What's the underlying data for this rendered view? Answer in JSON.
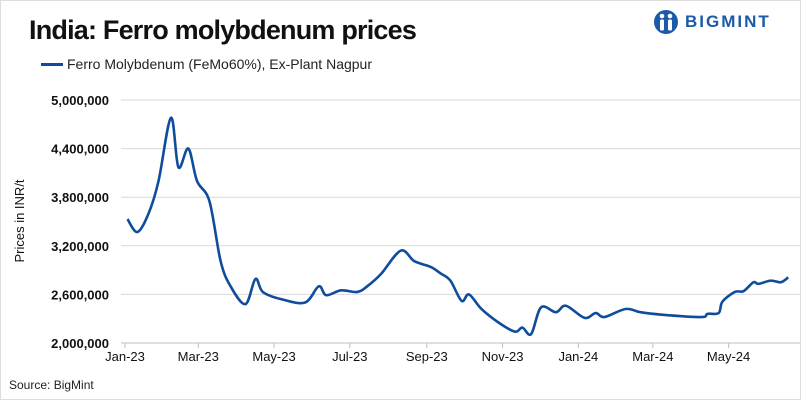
{
  "brand": {
    "name": "BIGMINT",
    "color": "#1a5aa8"
  },
  "chart_data": {
    "type": "line",
    "title": "India: Ferro molybdenum prices",
    "ylabel": "Prices in INR/t",
    "xlabel": "",
    "ylim": [
      2000000,
      5000000
    ],
    "yticks": [
      "2,000,000",
      "2,600,000",
      "3,200,000",
      "3,800,000",
      "4,400,000",
      "5,000,000"
    ],
    "ytick_values": [
      2000000,
      2600000,
      3200000,
      3800000,
      4400000,
      5000000
    ],
    "xticks": [
      "Jan-23",
      "Mar-23",
      "May-23",
      "Jul-23",
      "Sep-23",
      "Nov-23",
      "Jan-24",
      "Mar-24",
      "May-24"
    ],
    "xtick_dates": [
      "2023-01-01",
      "2023-03-01",
      "2023-05-01",
      "2023-07-01",
      "2023-09-01",
      "2023-11-01",
      "2024-01-01",
      "2024-03-01",
      "2024-05-01"
    ],
    "xlim": [
      "2023-01-01",
      "2024-06-20"
    ],
    "grid": "horizontal",
    "legend_position": "top-left",
    "series": [
      {
        "name": "Ferro Molybdenum (FeMo60%), Ex-Plant Nagpur",
        "color": "#0f4c9c",
        "x": [
          "2023-01-03",
          "2023-01-11",
          "2023-01-20",
          "2023-01-28",
          "2023-02-07",
          "2023-02-13",
          "2023-02-21",
          "2023-02-28",
          "2023-03-10",
          "2023-03-19",
          "2023-03-27",
          "2023-04-08",
          "2023-04-16",
          "2023-04-22",
          "2023-05-07",
          "2023-05-26",
          "2023-06-06",
          "2023-06-12",
          "2023-06-24",
          "2023-07-07",
          "2023-07-15",
          "2023-07-26",
          "2023-08-11",
          "2023-08-22",
          "2023-09-04",
          "2023-09-12",
          "2023-09-20",
          "2023-09-29",
          "2023-10-05",
          "2023-10-15",
          "2023-10-29",
          "2023-11-11",
          "2023-11-17",
          "2023-11-24",
          "2023-12-02",
          "2023-12-14",
          "2023-12-22",
          "2024-01-06",
          "2024-01-15",
          "2024-01-22",
          "2024-02-08",
          "2024-02-20",
          "2024-03-08",
          "2024-04-09",
          "2024-04-14",
          "2024-04-23",
          "2024-04-26",
          "2024-05-06",
          "2024-05-13",
          "2024-05-21",
          "2024-05-25",
          "2024-06-04",
          "2024-06-12",
          "2024-06-18"
        ],
        "values": [
          3530000,
          3370000,
          3600000,
          4000000,
          4780000,
          4170000,
          4400000,
          4000000,
          3750000,
          3010000,
          2700000,
          2480000,
          2790000,
          2630000,
          2540000,
          2500000,
          2700000,
          2590000,
          2650000,
          2630000,
          2700000,
          2850000,
          3140000,
          3010000,
          2940000,
          2860000,
          2770000,
          2520000,
          2600000,
          2420000,
          2250000,
          2140000,
          2190000,
          2110000,
          2440000,
          2380000,
          2460000,
          2310000,
          2370000,
          2320000,
          2420000,
          2380000,
          2350000,
          2320000,
          2360000,
          2370000,
          2510000,
          2630000,
          2640000,
          2750000,
          2730000,
          2770000,
          2750000,
          2810000
        ]
      }
    ]
  },
  "source": "Source: BigMint"
}
